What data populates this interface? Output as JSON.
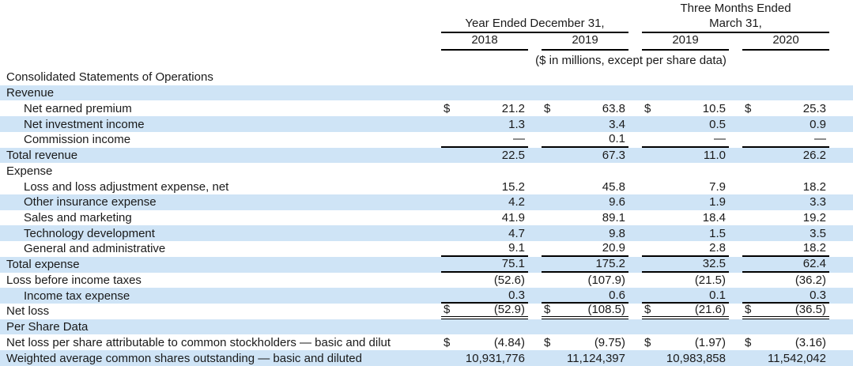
{
  "currency_symbol": "$",
  "colors": {
    "row_stripe": "#cfe4f6",
    "rule": "#000000",
    "text": "#1a1a1a"
  },
  "header": {
    "left_group_label": "Year Ended December 31,",
    "right_group_label_line1": "Three Months Ended",
    "right_group_label_line2": "March 31,",
    "columns": [
      "2018",
      "2019",
      "2019",
      "2020"
    ],
    "units_note": "($ in millions, except per share data)"
  },
  "rows": [
    {
      "label": "Consolidated Statements of Operations",
      "indent": false,
      "shaded": false,
      "dollar": false,
      "values": [
        "",
        "",
        "",
        ""
      ]
    },
    {
      "label": "Revenue",
      "indent": false,
      "shaded": true,
      "dollar": false,
      "values": [
        "",
        "",
        "",
        ""
      ]
    },
    {
      "label": "Net earned premium",
      "indent": true,
      "shaded": false,
      "dollar": true,
      "values": [
        "21.2",
        "63.8",
        "10.5",
        "25.3"
      ]
    },
    {
      "label": "Net investment income",
      "indent": true,
      "shaded": true,
      "dollar": false,
      "values": [
        "1.3",
        "3.4",
        "0.5",
        "0.9"
      ]
    },
    {
      "label": "Commission income",
      "indent": true,
      "shaded": false,
      "dollar": false,
      "rule_bottom": true,
      "values": [
        "—",
        "0.1",
        "—",
        "—"
      ]
    },
    {
      "label": "Total revenue",
      "indent": false,
      "shaded": true,
      "dollar": false,
      "values": [
        "22.5",
        "67.3",
        "11.0",
        "26.2"
      ]
    },
    {
      "label": "Expense",
      "indent": false,
      "shaded": false,
      "dollar": false,
      "values": [
        "",
        "",
        "",
        ""
      ]
    },
    {
      "label": "Loss and loss adjustment expense, net",
      "indent": true,
      "shaded": false,
      "dollar": false,
      "values": [
        "15.2",
        "45.8",
        "7.9",
        "18.2"
      ]
    },
    {
      "label": "Other insurance expense",
      "indent": true,
      "shaded": true,
      "dollar": false,
      "values": [
        "4.2",
        "9.6",
        "1.9",
        "3.3"
      ]
    },
    {
      "label": "Sales and marketing",
      "indent": true,
      "shaded": false,
      "dollar": false,
      "values": [
        "41.9",
        "89.1",
        "18.4",
        "19.2"
      ]
    },
    {
      "label": "Technology development",
      "indent": true,
      "shaded": true,
      "dollar": false,
      "values": [
        "4.7",
        "9.8",
        "1.5",
        "3.5"
      ]
    },
    {
      "label": "General and administrative",
      "indent": true,
      "shaded": false,
      "dollar": false,
      "rule_bottom": true,
      "values": [
        "9.1",
        "20.9",
        "2.8",
        "18.2"
      ]
    },
    {
      "label": "Total expense",
      "indent": false,
      "shaded": true,
      "dollar": false,
      "rule_bottom": true,
      "values": [
        "75.1",
        "175.2",
        "32.5",
        "62.4"
      ]
    },
    {
      "label": "Loss before income taxes",
      "indent": false,
      "shaded": false,
      "dollar": false,
      "values": [
        "(52.6)",
        "(107.9)",
        "(21.5)",
        "(36.2)"
      ]
    },
    {
      "label": "Income tax expense",
      "indent": true,
      "shaded": true,
      "dollar": false,
      "rule_bottom": true,
      "values": [
        "0.3",
        "0.6",
        "0.1",
        "0.3"
      ]
    },
    {
      "label": "Net loss",
      "indent": false,
      "shaded": false,
      "dollar": true,
      "double_rule_bottom": true,
      "values": [
        "(52.9)",
        "(108.5)",
        "(21.6)",
        "(36.5)"
      ]
    },
    {
      "label": "Per Share Data",
      "indent": false,
      "shaded": true,
      "dollar": false,
      "values": [
        "",
        "",
        "",
        ""
      ]
    },
    {
      "label": "Net loss per share attributable to common stockholders — basic and dilut",
      "indent": false,
      "shaded": false,
      "dollar": true,
      "values": [
        "(4.84)",
        "(9.75)",
        "(1.97)",
        "(3.16)"
      ]
    },
    {
      "label": "Weighted average common shares outstanding — basic and diluted",
      "indent": false,
      "shaded": true,
      "dollar": false,
      "values": [
        "10,931,776",
        "11,124,397",
        "10,983,858",
        "11,542,042"
      ]
    }
  ]
}
